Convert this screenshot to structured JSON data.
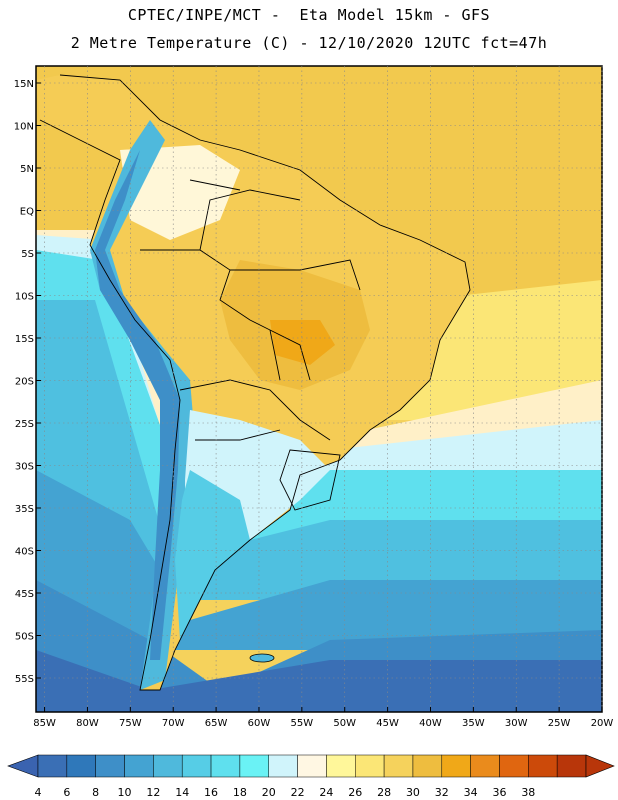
{
  "header": {
    "title_line1": "CPTEC/INPE/MCT -  Eta Model 15km - GFS",
    "title_line2": "2 Metre Temperature (C) - 12/10/2020 12UTC fct=47h"
  },
  "axes": {
    "lat_labels": [
      "15N",
      "10N",
      "5N",
      "EQ",
      "5S",
      "10S",
      "15S",
      "20S",
      "25S",
      "30S",
      "35S",
      "40S",
      "45S",
      "50S",
      "55S"
    ],
    "lat_values": [
      15,
      10,
      5,
      0,
      -5,
      -10,
      -15,
      -20,
      -25,
      -30,
      -35,
      -40,
      -45,
      -50,
      -55
    ],
    "lon_labels": [
      "85W",
      "80W",
      "75W",
      "70W",
      "65W",
      "60W",
      "55W",
      "50W",
      "45W",
      "40W",
      "35W",
      "30W",
      "25W",
      "20W"
    ],
    "lon_values": [
      -85,
      -80,
      -75,
      -70,
      -65,
      -60,
      -55,
      -50,
      -45,
      -40,
      -35,
      -30,
      -25,
      -20
    ],
    "lon_range": [
      -86,
      -20
    ],
    "lat_range": [
      -59,
      17
    ],
    "grid": true
  },
  "colorbar": {
    "labels": [
      "4",
      "6",
      "8",
      "10",
      "12",
      "14",
      "16",
      "18",
      "20",
      "22",
      "24",
      "26",
      "28",
      "30",
      "32",
      "34",
      "36",
      "38"
    ],
    "colors": [
      "#3a6fb5",
      "#2f78ba",
      "#3e8fc8",
      "#44a3d2",
      "#4fb9dc",
      "#56cde6",
      "#5fe0ee",
      "#6af2f5",
      "#d0f4fb",
      "#fff7e3",
      "#fff79a",
      "#fbe676",
      "#f5d25c",
      "#eebd3f",
      "#f0a818",
      "#ea8b1c",
      "#e06610",
      "#cc4a0a",
      "#b8360a"
    ],
    "under_color": "#3a63b0",
    "over_color": "#b8360a"
  }
}
